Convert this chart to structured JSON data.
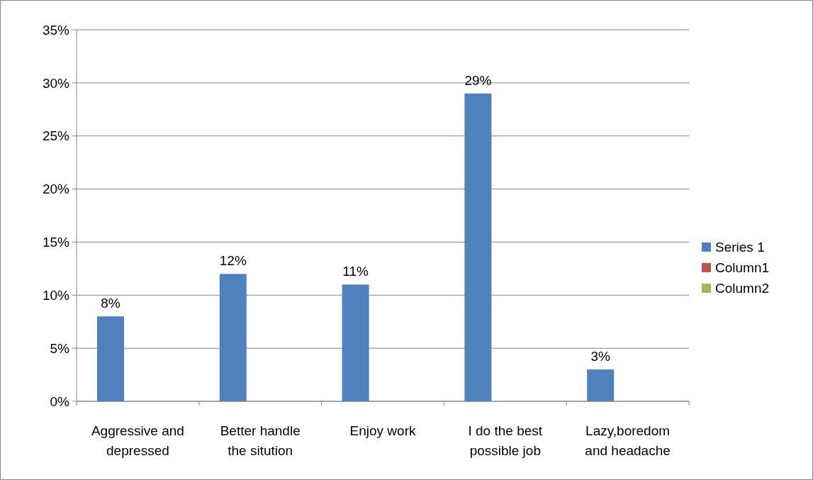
{
  "chart_data": {
    "type": "bar",
    "categories": [
      "Aggressive and depressed",
      "Better handle the sitution",
      "Enjoy work",
      "I do the best possible job",
      "Lazy,boredom and headache"
    ],
    "series": [
      {
        "name": "Series 1",
        "color": "#4f81bd",
        "values": [
          8,
          12,
          11,
          29,
          3
        ],
        "value_labels": [
          "8%",
          "12%",
          "11%",
          "29%",
          "3%"
        ]
      },
      {
        "name": "Column1",
        "color": "#c0504d",
        "values": [
          null,
          null,
          null,
          null,
          null
        ]
      },
      {
        "name": "Column2",
        "color": "#9bbb59",
        "values": [
          null,
          null,
          null,
          null,
          null
        ]
      }
    ],
    "ylim": [
      0,
      35
    ],
    "yticks": [
      {
        "value": 0,
        "label": "0%"
      },
      {
        "value": 5,
        "label": "5%"
      },
      {
        "value": 10,
        "label": "10%"
      },
      {
        "value": 15,
        "label": "15%"
      },
      {
        "value": 20,
        "label": "20%"
      },
      {
        "value": 25,
        "label": "25%"
      },
      {
        "value": 30,
        "label": "30%"
      },
      {
        "value": 35,
        "label": "35%"
      }
    ],
    "grid": "y",
    "legend": "right"
  }
}
